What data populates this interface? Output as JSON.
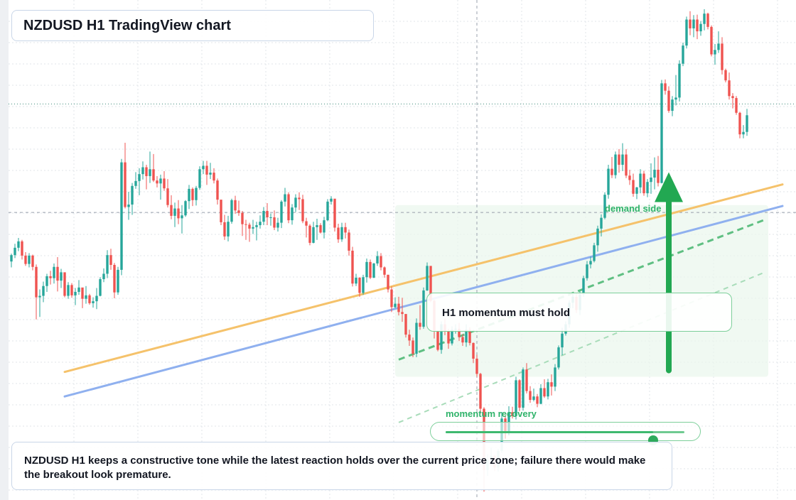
{
  "header": {
    "title": "NZDUSD H1 TradingView chart"
  },
  "note": {
    "text": "NZDUSD H1 keeps a constructive tone while the latest reaction holds over the current price zone; failure there would make the breakout look premature."
  },
  "callout": {
    "text": "H1 momentum must hold"
  },
  "labels": {
    "demand": "demand side",
    "momentum": "momentum recovery"
  },
  "slider": {
    "value_fraction": 0.87
  },
  "colors": {
    "up": "#26a69a",
    "down": "#ef5350",
    "grid": "#e1e4ea",
    "orange_line": "#f5c26b",
    "blue_line": "#8fb0ef",
    "green": "#22a852",
    "zone": "#eaf6ec"
  },
  "icons": {
    "arrow": "arrow-up-icon"
  },
  "chart_data": {
    "type": "candlestick",
    "symbol": "NZDUSD",
    "timeframe": "H1",
    "ylim": [
      0,
      100
    ],
    "candles_note": "Approximate normalized price levels (0=bottom,100=top of plot); axis scale not printed.",
    "candles": [
      [
        48.6,
        50.2,
        47.4,
        49.9
      ],
      [
        49.9,
        52.2,
        49.3,
        51.4
      ],
      [
        51.4,
        53.4,
        50.7,
        52.7
      ],
      [
        52.7,
        53.0,
        49.0,
        49.8
      ],
      [
        49.8,
        50.5,
        47.7,
        48.1
      ],
      [
        48.1,
        50.3,
        47.4,
        49.8
      ],
      [
        49.8,
        50.0,
        46.8,
        47.5
      ],
      [
        47.5,
        48.0,
        36.8,
        41.3
      ],
      [
        41.3,
        42.9,
        37.3,
        41.6
      ],
      [
        41.6,
        44.5,
        40.3,
        43.6
      ],
      [
        43.6,
        46.1,
        42.4,
        45.6
      ],
      [
        45.6,
        46.7,
        43.9,
        45.2
      ],
      [
        45.2,
        48.2,
        44.1,
        47.5
      ],
      [
        47.5,
        49.5,
        42.5,
        44.7
      ],
      [
        44.7,
        47.1,
        43.2,
        46.4
      ],
      [
        46.4,
        45.9,
        41.3,
        41.6
      ],
      [
        41.6,
        44.4,
        41.0,
        43.8
      ],
      [
        43.8,
        44.2,
        41.2,
        41.7
      ],
      [
        41.7,
        43.2,
        39.7,
        42.4
      ],
      [
        42.4,
        44.8,
        41.8,
        43.3
      ],
      [
        43.3,
        43.2,
        39.1,
        41.0
      ],
      [
        41.0,
        43.6,
        40.0,
        41.7
      ],
      [
        41.7,
        42.0,
        39.8,
        40.1
      ],
      [
        40.1,
        41.3,
        39.2,
        40.5
      ],
      [
        40.5,
        43.2,
        38.9,
        41.6
      ],
      [
        41.6,
        45.4,
        41.5,
        45.0
      ],
      [
        45.0,
        47.2,
        44.4,
        46.1
      ],
      [
        46.1,
        50.9,
        45.2,
        49.9
      ],
      [
        49.9,
        51.2,
        46.9,
        47.9
      ],
      [
        47.9,
        48.3,
        41.1,
        42.3
      ],
      [
        42.3,
        47.5,
        41.8,
        46.9
      ],
      [
        46.9,
        69.5,
        45.8,
        68.8
      ],
      [
        68.8,
        72.8,
        59.4,
        59.7
      ],
      [
        59.7,
        62.8,
        57.1,
        60.2
      ],
      [
        60.2,
        64.6,
        58.1,
        64.0
      ],
      [
        64.0,
        66.8,
        63.4,
        65.0
      ],
      [
        65.0,
        67.6,
        62.1,
        66.4
      ],
      [
        66.4,
        69.0,
        65.3,
        67.8
      ],
      [
        67.8,
        68.3,
        63.3,
        66.0
      ],
      [
        66.0,
        71.0,
        64.6,
        67.4
      ],
      [
        67.4,
        70.5,
        64.8,
        65.1
      ],
      [
        65.1,
        66.0,
        63.7,
        64.5
      ],
      [
        64.5,
        66.3,
        61.2,
        65.5
      ],
      [
        65.5,
        67.0,
        63.0,
        63.5
      ],
      [
        63.5,
        65.4,
        59.6,
        60.1
      ],
      [
        60.1,
        62.1,
        57.2,
        57.9
      ],
      [
        57.9,
        60.6,
        55.6,
        59.4
      ],
      [
        59.4,
        61.1,
        56.2,
        57.4
      ],
      [
        57.4,
        60.1,
        54.3,
        58.0
      ],
      [
        58.0,
        61.1,
        57.7,
        60.9
      ],
      [
        60.9,
        64.2,
        59.3,
        63.4
      ],
      [
        63.4,
        63.7,
        59.9,
        61.1
      ],
      [
        61.1,
        64.0,
        60.0,
        63.6
      ],
      [
        63.6,
        68.0,
        63.2,
        67.4
      ],
      [
        67.4,
        69.1,
        66.4,
        68.1
      ],
      [
        68.1,
        69.1,
        64.2,
        66.3
      ],
      [
        66.3,
        68.7,
        65.4,
        66.7
      ],
      [
        66.7,
        67.6,
        64.5,
        65.1
      ],
      [
        65.1,
        65.5,
        60.2,
        61.2
      ],
      [
        61.2,
        61.1,
        56.0,
        56.6
      ],
      [
        56.6,
        58.1,
        53.0,
        53.7
      ],
      [
        53.7,
        57.9,
        52.7,
        56.7
      ],
      [
        56.7,
        61.4,
        56.3,
        61.1
      ],
      [
        61.1,
        62.0,
        58.3,
        59.0
      ],
      [
        59.0,
        61.0,
        57.9,
        58.5
      ],
      [
        58.5,
        58.9,
        53.8,
        56.2
      ],
      [
        56.2,
        57.1,
        53.0,
        56.1
      ],
      [
        56.1,
        56.5,
        52.6,
        55.3
      ],
      [
        55.3,
        57.1,
        54.2,
        55.6
      ],
      [
        55.6,
        56.7,
        52.9,
        56.0
      ],
      [
        56.0,
        58.0,
        55.3,
        56.7
      ],
      [
        56.7,
        59.7,
        56.0,
        58.9
      ],
      [
        58.9,
        60.5,
        56.0,
        57.6
      ],
      [
        57.6,
        58.4,
        55.9,
        57.6
      ],
      [
        57.6,
        59.0,
        55.0,
        55.5
      ],
      [
        55.5,
        57.5,
        54.7,
        56.5
      ],
      [
        56.5,
        61.1,
        55.4,
        60.8
      ],
      [
        60.8,
        63.6,
        59.8,
        62.3
      ],
      [
        62.3,
        62.7,
        56.4,
        57.0
      ],
      [
        57.0,
        60.3,
        56.1,
        59.6
      ],
      [
        59.6,
        62.3,
        58.7,
        61.6
      ],
      [
        61.6,
        62.7,
        59.1,
        61.3
      ],
      [
        61.3,
        62.2,
        56.4,
        56.8
      ],
      [
        56.8,
        57.5,
        53.5,
        55.9
      ],
      [
        55.9,
        56.2,
        51.9,
        52.4
      ],
      [
        52.4,
        56.7,
        52.3,
        55.6
      ],
      [
        55.6,
        57.3,
        53.0,
        56.0
      ],
      [
        56.0,
        56.4,
        54.3,
        54.5
      ],
      [
        54.5,
        57.7,
        53.3,
        57.0
      ],
      [
        57.0,
        61.3,
        56.8,
        60.8
      ],
      [
        60.8,
        61.9,
        60.2,
        61.4
      ],
      [
        61.4,
        60.5,
        54.7,
        55.5
      ],
      [
        55.5,
        56.3,
        52.4,
        53.1
      ],
      [
        53.1,
        56.5,
        52.6,
        55.6
      ],
      [
        55.6,
        56.5,
        53.3,
        54.5
      ],
      [
        54.5,
        55.1,
        49.8,
        50.8
      ],
      [
        50.8,
        51.6,
        43.5,
        44.1
      ],
      [
        44.1,
        46.1,
        43.6,
        45.3
      ],
      [
        45.3,
        45.4,
        41.4,
        42.2
      ],
      [
        42.2,
        45.9,
        41.8,
        45.4
      ],
      [
        45.4,
        49.2,
        44.3,
        48.5
      ],
      [
        48.5,
        49.0,
        45.0,
        45.3
      ],
      [
        45.3,
        48.3,
        45.2,
        48.2
      ],
      [
        48.2,
        50.7,
        47.7,
        49.7
      ],
      [
        49.7,
        50.3,
        46.8,
        47.4
      ],
      [
        47.4,
        47.6,
        45.3,
        45.9
      ],
      [
        45.9,
        45.9,
        42.3,
        42.9
      ],
      [
        42.9,
        43.5,
        38.3,
        39.3
      ],
      [
        39.3,
        41.3,
        39.1,
        40.0
      ],
      [
        40.0,
        41.4,
        37.6,
        38.3
      ],
      [
        38.3,
        41.2,
        36.3,
        37.9
      ],
      [
        37.9,
        37.9,
        33.1,
        33.7
      ],
      [
        33.7,
        34.7,
        31.4,
        32.5
      ],
      [
        32.5,
        33.1,
        29.1,
        29.8
      ],
      [
        29.8,
        37.0,
        29.1,
        36.1
      ],
      [
        36.1,
        39.7,
        34.7,
        35.3
      ],
      [
        35.3,
        43.3,
        34.9,
        42.7
      ],
      [
        42.7,
        48.4,
        42.6,
        47.7
      ],
      [
        47.7,
        47.4,
        40.3,
        40.6
      ],
      [
        40.6,
        40.8,
        32.9,
        34.5
      ],
      [
        34.5,
        34.5,
        30.3,
        30.6
      ],
      [
        30.6,
        36.4,
        29.8,
        35.8
      ],
      [
        35.8,
        37.0,
        33.6,
        34.3
      ],
      [
        34.3,
        34.9,
        30.8,
        31.9
      ],
      [
        31.9,
        35.4,
        31.5,
        34.7
      ],
      [
        34.7,
        35.8,
        33.9,
        34.9
      ],
      [
        34.9,
        36.1,
        32.4,
        33.2
      ],
      [
        33.2,
        33.8,
        31.4,
        32.1
      ],
      [
        32.1,
        35.8,
        31.2,
        34.7
      ],
      [
        34.7,
        35.2,
        31.5,
        32.0
      ],
      [
        32.0,
        32.1,
        27.9,
        28.8
      ],
      [
        28.8,
        29.6,
        25.1,
        25.7
      ],
      [
        25.7,
        25.9,
        17.6,
        18.6
      ],
      [
        18.6,
        18.9,
        1.7,
        6.1
      ],
      [
        6.1,
        9.3,
        4.9,
        8.2
      ],
      [
        8.2,
        10.7,
        7.1,
        9.0
      ],
      [
        9.0,
        9.2,
        5.9,
        6.6
      ],
      [
        6.6,
        10.4,
        5.8,
        10.0
      ],
      [
        10.0,
        17.9,
        9.6,
        16.6
      ],
      [
        16.6,
        17.3,
        12.5,
        13.7
      ],
      [
        13.7,
        19.1,
        13.2,
        17.9
      ],
      [
        17.9,
        19.0,
        16.6,
        17.1
      ],
      [
        17.1,
        25.1,
        16.4,
        24.4
      ],
      [
        24.4,
        24.6,
        18.1,
        18.8
      ],
      [
        18.8,
        27.0,
        18.2,
        26.6
      ],
      [
        26.6,
        27.9,
        21.7,
        22.2
      ],
      [
        22.2,
        23.2,
        19.8,
        20.4
      ],
      [
        20.4,
        22.7,
        20.1,
        21.1
      ],
      [
        21.1,
        21.6,
        18.9,
        19.6
      ],
      [
        19.6,
        23.6,
        19.5,
        22.8
      ],
      [
        22.8,
        24.6,
        20.8,
        21.1
      ],
      [
        21.1,
        24.7,
        20.5,
        24.0
      ],
      [
        24.0,
        25.6,
        21.3,
        23.1
      ],
      [
        23.1,
        27.7,
        22.2,
        27.0
      ],
      [
        27.0,
        31.5,
        26.6,
        31.1
      ],
      [
        31.1,
        35.1,
        29.5,
        33.9
      ],
      [
        33.9,
        36.4,
        33.5,
        35.8
      ],
      [
        35.8,
        40.7,
        35.1,
        40.2
      ],
      [
        40.2,
        42.2,
        39.1,
        41.4
      ],
      [
        41.4,
        42.2,
        38.1,
        38.7
      ],
      [
        38.7,
        42.5,
        37.7,
        41.9
      ],
      [
        41.9,
        45.7,
        41.4,
        45.2
      ],
      [
        45.2,
        48.7,
        44.7,
        48.0
      ],
      [
        48.0,
        49.6,
        47.2,
        48.7
      ],
      [
        48.7,
        52.4,
        48.4,
        51.9
      ],
      [
        51.9,
        55.9,
        50.6,
        55.3
      ],
      [
        55.3,
        58.2,
        53.7,
        57.5
      ],
      [
        57.5,
        62.7,
        57.2,
        62.2
      ],
      [
        62.2,
        68.3,
        61.4,
        67.5
      ],
      [
        67.5,
        69.9,
        65.6,
        66.2
      ],
      [
        66.2,
        71.0,
        65.5,
        70.4
      ],
      [
        70.4,
        71.5,
        66.7,
        68.3
      ],
      [
        68.3,
        72.7,
        67.0,
        70.4
      ],
      [
        70.4,
        71.5,
        65.6,
        66.1
      ],
      [
        66.1,
        67.3,
        64.2,
        65.2
      ],
      [
        65.2,
        66.5,
        61.8,
        62.4
      ],
      [
        62.4,
        63.8,
        61.3,
        63.7
      ],
      [
        63.7,
        67.4,
        62.5,
        66.5
      ],
      [
        66.5,
        67.1,
        62.0,
        62.5
      ],
      [
        62.5,
        65.4,
        61.7,
        64.8
      ],
      [
        64.8,
        68.6,
        62.4,
        65.7
      ],
      [
        65.7,
        69.8,
        63.3,
        67.3
      ],
      [
        67.3,
        70.1,
        63.9,
        64.6
      ],
      [
        64.6,
        85.6,
        64.5,
        84.9
      ],
      [
        84.9,
        85.7,
        82.6,
        83.4
      ],
      [
        83.4,
        84.3,
        78.9,
        79.3
      ],
      [
        79.3,
        82.3,
        78.2,
        81.6
      ],
      [
        81.6,
        86.6,
        80.4,
        82.0
      ],
      [
        82.0,
        89.6,
        81.2,
        88.9
      ],
      [
        88.9,
        93.2,
        88.4,
        92.6
      ],
      [
        92.6,
        98.5,
        92.0,
        97.9
      ],
      [
        97.9,
        99.6,
        94.7,
        96.1
      ],
      [
        96.1,
        98.8,
        94.3,
        97.9
      ],
      [
        97.9,
        98.9,
        93.9,
        95.5
      ],
      [
        95.5,
        97.6,
        94.6,
        97.0
      ],
      [
        97.0,
        100.0,
        95.7,
        99.1
      ],
      [
        99.1,
        99.3,
        95.9,
        96.4
      ],
      [
        96.4,
        96.7,
        90.4,
        90.8
      ],
      [
        90.8,
        92.9,
        88.7,
        91.7
      ],
      [
        91.7,
        95.5,
        91.1,
        93.0
      ],
      [
        93.0,
        94.3,
        86.7,
        87.6
      ],
      [
        87.6,
        87.9,
        85.1,
        85.5
      ],
      [
        85.5,
        87.1,
        81.6,
        82.3
      ],
      [
        82.3,
        82.9,
        79.8,
        81.9
      ],
      [
        81.9,
        82.3,
        78.5,
        78.9
      ],
      [
        78.9,
        79.1,
        73.7,
        74.5
      ],
      [
        74.5,
        76.4,
        73.7,
        75.0
      ],
      [
        75.0,
        79.7,
        74.2,
        78.4
      ]
    ],
    "current_price": 58.6,
    "crosshair": {
      "x_index": 131,
      "y": 58.6
    },
    "dotted_level": 80.7,
    "trendlines": [
      {
        "name": "",
        "color": "orange",
        "from": [
          15,
          26.1
        ],
        "to": [
          217,
          64.3
        ]
      },
      {
        "name": "",
        "color": "blue",
        "from": [
          15,
          21.1
        ],
        "to": [
          217,
          59.9
        ]
      }
    ],
    "dashed_channel": [
      {
        "from": [
          109,
          28.6
        ],
        "to": [
          212,
          57.1
        ],
        "style": "bold"
      },
      {
        "from": [
          109,
          15.8
        ],
        "to": [
          212,
          46.4
        ],
        "style": "light"
      }
    ],
    "demand_zone": {
      "from_index": 108,
      "to_index": 213,
      "low": 25.1,
      "high": 60.1
    },
    "arrow": {
      "x_index": 185,
      "from": 26.4,
      "to": 66.5
    }
  }
}
